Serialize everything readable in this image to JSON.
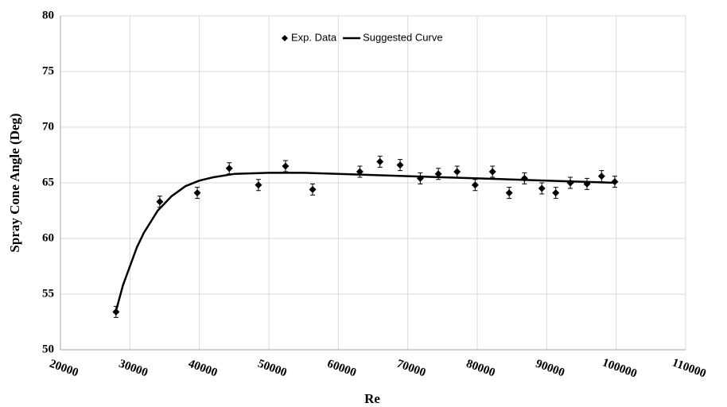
{
  "chart_data": {
    "type": "scatter",
    "x_label": "Re",
    "y_label": "Spray Cone Angle (Deg)",
    "xlim": [
      20000,
      110000
    ],
    "xticks": [
      20000,
      30000,
      40000,
      50000,
      60000,
      70000,
      80000,
      90000,
      100000,
      110000
    ],
    "ylim": [
      50,
      80
    ],
    "yticks": [
      50,
      55,
      60,
      65,
      70,
      75,
      80
    ],
    "grid": true,
    "legend": "top",
    "series": [
      {
        "name": "Exp. Data",
        "type": "scatter",
        "color": "#000000",
        "x": [
          28000,
          34300,
          39700,
          44300,
          48500,
          52400,
          56300,
          63100,
          66000,
          68900,
          71800,
          74400,
          77100,
          79700,
          82200,
          84600,
          86800,
          89300,
          91300,
          93400,
          95800,
          97900,
          99800
        ],
        "values": [
          53.4,
          63.3,
          64.1,
          66.3,
          64.8,
          66.5,
          64.4,
          66.0,
          66.9,
          66.6,
          65.4,
          65.8,
          66.0,
          64.8,
          66.0,
          64.1,
          65.4,
          64.5,
          64.1,
          65.0,
          64.9,
          65.6,
          65.1
        ],
        "errors": [
          0.5,
          0.5,
          0.5,
          0.5,
          0.5,
          0.5,
          0.5,
          0.5,
          0.5,
          0.5,
          0.5,
          0.5,
          0.5,
          0.5,
          0.5,
          0.5,
          0.5,
          0.5,
          0.5,
          0.5,
          0.5,
          0.5,
          0.5
        ]
      },
      {
        "name": "Suggested Curve",
        "type": "line",
        "color": "#000000",
        "x": [
          28000,
          29000,
          30000,
          31000,
          32000,
          34000,
          36000,
          38000,
          40000,
          42000,
          45000,
          50000,
          55000,
          60000,
          70000,
          80000,
          90000,
          100000
        ],
        "values": [
          53.5,
          55.8,
          57.5,
          59.2,
          60.5,
          62.5,
          63.8,
          64.7,
          65.2,
          65.5,
          65.8,
          65.9,
          65.9,
          65.8,
          65.6,
          65.4,
          65.2,
          65.0
        ]
      }
    ]
  }
}
